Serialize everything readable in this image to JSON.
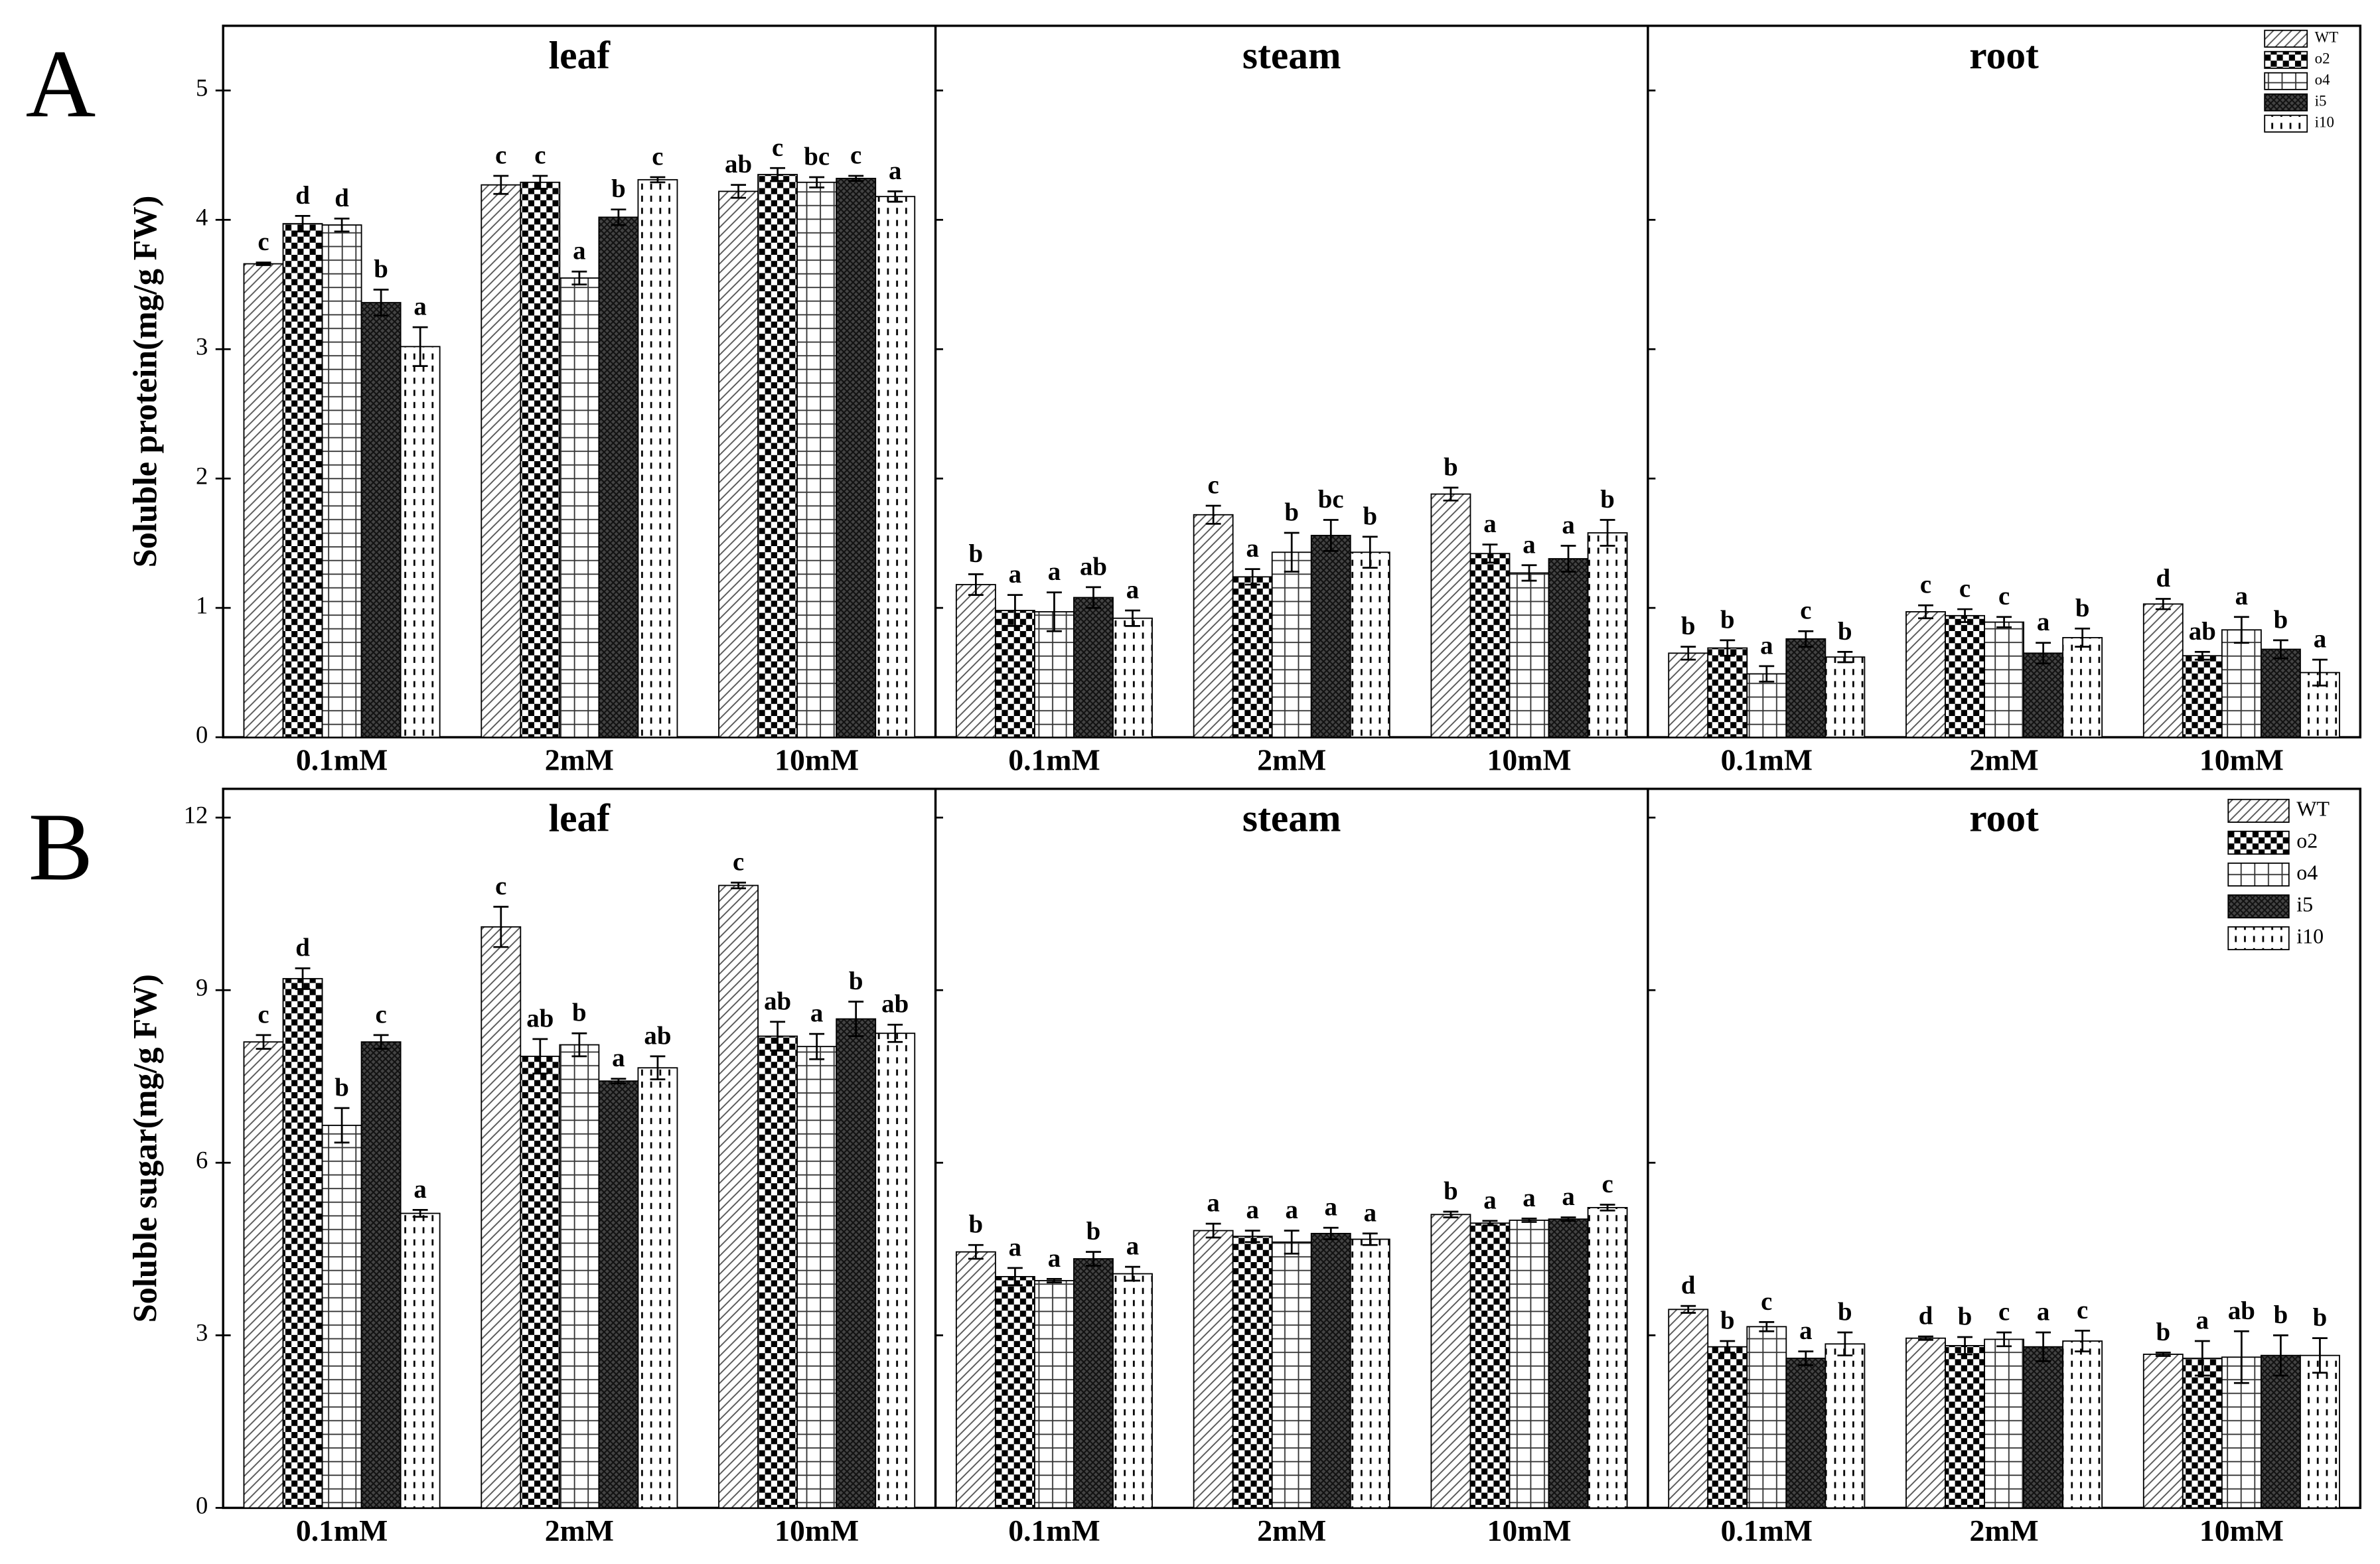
{
  "chart_data": [
    {
      "type": "bar",
      "panel_label": "A",
      "ylabel": "Soluble protein(mg/g FW)",
      "ylim": [
        0,
        5.5
      ],
      "yticks": [
        0,
        1,
        2,
        3,
        4,
        5
      ],
      "legend": {
        "position": "upper right",
        "entries": [
          {
            "name": "WT",
            "pattern": "hatch"
          },
          {
            "name": "o2",
            "pattern": "check"
          },
          {
            "name": "o4",
            "pattern": "grid"
          },
          {
            "name": "i5",
            "pattern": "darkcross"
          },
          {
            "name": "i10",
            "pattern": "dots"
          }
        ]
      },
      "subplots": [
        {
          "title": "leaf",
          "categories": [
            "0.1mM",
            "2mM",
            "10mM"
          ],
          "series": [
            {
              "values": [
                3.66,
                4.27,
                4.22
              ],
              "errors": [
                0.01,
                0.07,
                0.05
              ],
              "letters": [
                "c",
                "c",
                "ab"
              ]
            },
            {
              "values": [
                3.97,
                4.29,
                4.35
              ],
              "errors": [
                0.06,
                0.05,
                0.05
              ],
              "letters": [
                "d",
                "c",
                "c"
              ]
            },
            {
              "values": [
                3.96,
                3.55,
                4.29
              ],
              "errors": [
                0.05,
                0.05,
                0.04
              ],
              "letters": [
                "d",
                "a",
                "bc"
              ]
            },
            {
              "values": [
                3.36,
                4.02,
                4.32
              ],
              "errors": [
                0.1,
                0.06,
                0.02
              ],
              "letters": [
                "b",
                "b",
                "c"
              ]
            },
            {
              "values": [
                3.02,
                4.31,
                4.18
              ],
              "errors": [
                0.15,
                0.02,
                0.04
              ],
              "letters": [
                "a",
                "c",
                "a"
              ]
            }
          ]
        },
        {
          "title": "steam",
          "categories": [
            "0.1mM",
            "2mM",
            "10mM"
          ],
          "series": [
            {
              "values": [
                1.18,
                1.72,
                1.88
              ],
              "errors": [
                0.08,
                0.07,
                0.05
              ],
              "letters": [
                "b",
                "c",
                "b"
              ]
            },
            {
              "values": [
                0.98,
                1.24,
                1.42
              ],
              "errors": [
                0.12,
                0.06,
                0.07
              ],
              "letters": [
                "a",
                "a",
                "a"
              ]
            },
            {
              "values": [
                0.97,
                1.43,
                1.27
              ],
              "errors": [
                0.15,
                0.15,
                0.06
              ],
              "letters": [
                "a",
                "b",
                "a"
              ]
            },
            {
              "values": [
                1.08,
                1.56,
                1.38
              ],
              "errors": [
                0.08,
                0.12,
                0.1
              ],
              "letters": [
                "ab",
                "bc",
                "a"
              ]
            },
            {
              "values": [
                0.92,
                1.43,
                1.58
              ],
              "errors": [
                0.06,
                0.12,
                0.1
              ],
              "letters": [
                "a",
                "b",
                "b"
              ]
            }
          ]
        },
        {
          "title": "root",
          "categories": [
            "0.1mM",
            "2mM",
            "10mM"
          ],
          "series": [
            {
              "values": [
                0.65,
                0.97,
                1.03
              ],
              "errors": [
                0.05,
                0.05,
                0.04
              ],
              "letters": [
                "b",
                "c",
                "d"
              ]
            },
            {
              "values": [
                0.69,
                0.94,
                0.63
              ],
              "errors": [
                0.06,
                0.05,
                0.03
              ],
              "letters": [
                "b",
                "c",
                "ab"
              ]
            },
            {
              "values": [
                0.49,
                0.89,
                0.83
              ],
              "errors": [
                0.06,
                0.04,
                0.1
              ],
              "letters": [
                "a",
                "c",
                "a"
              ]
            },
            {
              "values": [
                0.76,
                0.65,
                0.68
              ],
              "errors": [
                0.06,
                0.08,
                0.07
              ],
              "letters": [
                "c",
                "a",
                "b"
              ]
            },
            {
              "values": [
                0.62,
                0.77,
                0.5
              ],
              "errors": [
                0.04,
                0.07,
                0.1
              ],
              "letters": [
                "b",
                "b",
                "a"
              ]
            }
          ]
        }
      ]
    },
    {
      "type": "bar",
      "panel_label": "B",
      "ylabel": "Soluble sugar(mg/g FW)",
      "ylim": [
        0,
        12.5
      ],
      "yticks": [
        0,
        3,
        6,
        9,
        12
      ],
      "legend": {
        "position": "upper right",
        "entries": [
          {
            "name": "WT",
            "pattern": "hatch"
          },
          {
            "name": "o2",
            "pattern": "check"
          },
          {
            "name": "o4",
            "pattern": "grid"
          },
          {
            "name": "i5",
            "pattern": "darkcross"
          },
          {
            "name": "i10",
            "pattern": "dots"
          }
        ]
      },
      "subplots": [
        {
          "title": "leaf",
          "categories": [
            "0.1mM",
            "2mM",
            "10mM"
          ],
          "series": [
            {
              "values": [
                8.1,
                10.1,
                10.82
              ],
              "errors": [
                0.12,
                0.35,
                0.05
              ],
              "letters": [
                "c",
                "c",
                "c"
              ]
            },
            {
              "values": [
                9.2,
                7.85,
                8.2
              ],
              "errors": [
                0.18,
                0.3,
                0.25
              ],
              "letters": [
                "d",
                "ab",
                "ab"
              ]
            },
            {
              "values": [
                6.65,
                8.05,
                8.02
              ],
              "errors": [
                0.3,
                0.2,
                0.22
              ],
              "letters": [
                "b",
                "b",
                "a"
              ]
            },
            {
              "values": [
                8.1,
                7.42,
                8.5
              ],
              "errors": [
                0.12,
                0.04,
                0.3
              ],
              "letters": [
                "c",
                "a",
                "b"
              ]
            },
            {
              "values": [
                5.12,
                7.65,
                8.25
              ],
              "errors": [
                0.06,
                0.2,
                0.15
              ],
              "letters": [
                "a",
                "ab",
                "ab"
              ]
            }
          ]
        },
        {
          "title": "steam",
          "categories": [
            "0.1mM",
            "2mM",
            "10mM"
          ],
          "series": [
            {
              "values": [
                4.45,
                4.82,
                5.1
              ],
              "errors": [
                0.12,
                0.12,
                0.05
              ],
              "letters": [
                "b",
                "a",
                "b"
              ]
            },
            {
              "values": [
                4.02,
                4.72,
                4.95
              ],
              "errors": [
                0.15,
                0.1,
                0.04
              ],
              "letters": [
                "a",
                "a",
                "a"
              ]
            },
            {
              "values": [
                3.95,
                4.62,
                5.0
              ],
              "errors": [
                0.03,
                0.2,
                0.03
              ],
              "letters": [
                "a",
                "a",
                "a"
              ]
            },
            {
              "values": [
                4.33,
                4.77,
                5.02
              ],
              "errors": [
                0.12,
                0.1,
                0.03
              ],
              "letters": [
                "b",
                "a",
                "a"
              ]
            },
            {
              "values": [
                4.07,
                4.67,
                5.22
              ],
              "errors": [
                0.12,
                0.1,
                0.05
              ],
              "letters": [
                "a",
                "a",
                "c"
              ]
            }
          ]
        },
        {
          "title": "root",
          "categories": [
            "0.1mM",
            "2mM",
            "10mM"
          ],
          "series": [
            {
              "values": [
                3.45,
                2.95,
                2.67
              ],
              "errors": [
                0.06,
                0.03,
                0.03
              ],
              "letters": [
                "d",
                "d",
                "b"
              ]
            },
            {
              "values": [
                2.8,
                2.82,
                2.6
              ],
              "errors": [
                0.1,
                0.15,
                0.3
              ],
              "letters": [
                "b",
                "b",
                "a"
              ]
            },
            {
              "values": [
                3.15,
                2.93,
                2.62
              ],
              "errors": [
                0.08,
                0.12,
                0.45
              ],
              "letters": [
                "c",
                "c",
                "ab"
              ]
            },
            {
              "values": [
                2.6,
                2.8,
                2.65
              ],
              "errors": [
                0.12,
                0.25,
                0.35
              ],
              "letters": [
                "a",
                "a",
                "b"
              ]
            },
            {
              "values": [
                2.85,
                2.9,
                2.65
              ],
              "errors": [
                0.2,
                0.18,
                0.3
              ],
              "letters": [
                "b",
                "c",
                "b"
              ]
            }
          ]
        }
      ]
    }
  ]
}
